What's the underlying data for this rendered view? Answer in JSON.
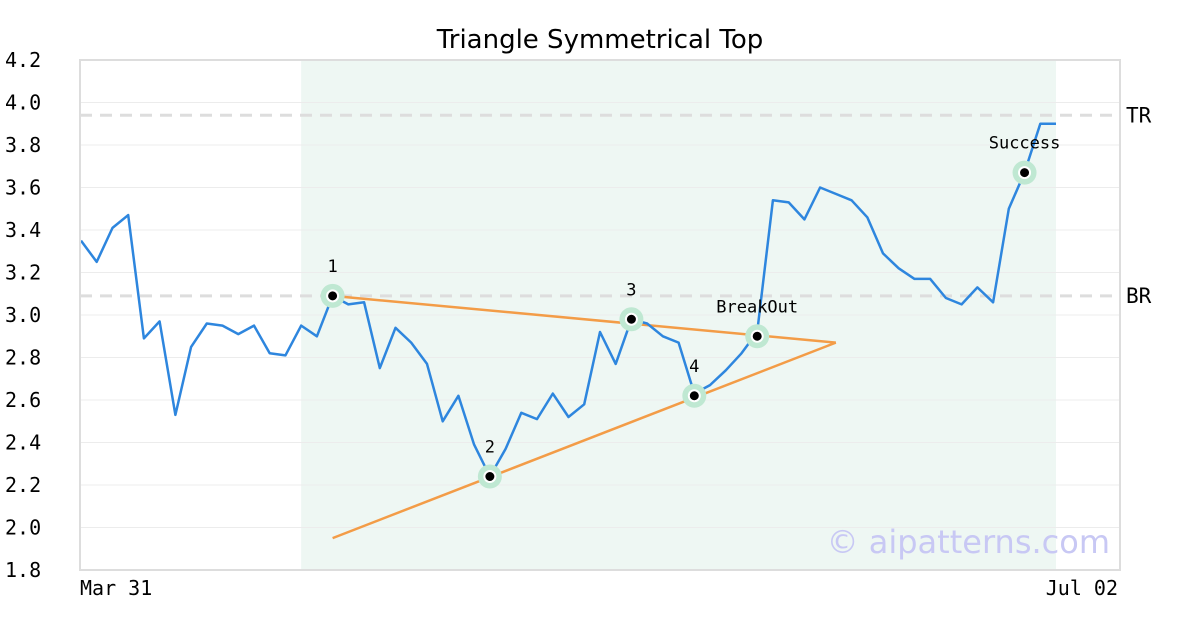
{
  "chart_data": {
    "type": "line",
    "title": "Triangle Symmetrical Top",
    "watermark": "© aipatterns.com",
    "x_tick_labels": [
      "Mar 31",
      "Jul 02"
    ],
    "ylim": [
      1.8,
      4.2
    ],
    "y_ticks": [
      "4.2",
      "4.0",
      "3.8",
      "3.6",
      "3.4",
      "3.2",
      "3.0",
      "2.8",
      "2.6",
      "2.4",
      "2.2",
      "2.0",
      "1.8"
    ],
    "grid": true,
    "colors": {
      "price": "#2e86de",
      "trendline": "#f39c47",
      "highlight_band": "#eef7f3",
      "marker_halo": "#bfe8d2",
      "reference": "#dddddd",
      "frame": "#dddddd",
      "watermark": "#c8c8f4"
    },
    "highlight_range": [
      14,
      62
    ],
    "series": [
      {
        "values": [
          3.35,
          3.25,
          3.41,
          3.47,
          2.89,
          2.97,
          2.53,
          2.85,
          2.96,
          2.95,
          2.91,
          2.95,
          2.82,
          2.81,
          2.95,
          2.9,
          3.09,
          3.05,
          3.06,
          2.75,
          2.94,
          2.87,
          2.77,
          2.5,
          2.62,
          2.39,
          2.24,
          2.37,
          2.54,
          2.51,
          2.63,
          2.52,
          2.58,
          2.92,
          2.77,
          2.98,
          2.96,
          2.9,
          2.87,
          2.63,
          2.67,
          2.74,
          2.82,
          2.92,
          3.54,
          3.53,
          3.45,
          3.6,
          3.57,
          3.54,
          3.46,
          3.29,
          3.22,
          3.17,
          3.17,
          3.08,
          3.05,
          3.13,
          3.06,
          3.5,
          3.67,
          3.9,
          3.9
        ]
      }
    ],
    "trendlines": [
      {
        "from": [
          16,
          3.09
        ],
        "to": [
          48,
          2.87
        ]
      },
      {
        "from": [
          16,
          1.95
        ],
        "to": [
          48,
          2.87
        ]
      }
    ],
    "reference_lines": [
      {
        "label": "TR",
        "value": 3.94
      },
      {
        "label": "BR",
        "value": 3.09
      }
    ],
    "annotations": [
      {
        "label": "1",
        "x": 16,
        "y": 3.09,
        "position": "above"
      },
      {
        "label": "2",
        "x": 26,
        "y": 2.24,
        "position": "above"
      },
      {
        "label": "3",
        "x": 35,
        "y": 2.98,
        "position": "above"
      },
      {
        "label": "4",
        "x": 39,
        "y": 2.62,
        "position": "above"
      },
      {
        "label": "BreakOut",
        "x": 43,
        "y": 2.9,
        "position": "above"
      },
      {
        "label": "Success",
        "x": 60,
        "y": 3.67,
        "position": "above"
      }
    ]
  }
}
